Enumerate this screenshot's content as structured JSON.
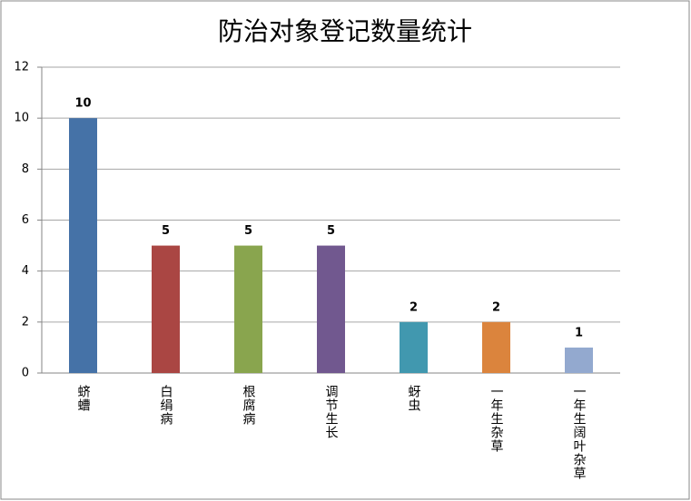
{
  "chart_data": {
    "type": "bar",
    "title": "防治对象登记数量统计",
    "categories": [
      "蛴螬",
      "白绢病",
      "根腐病",
      "调节生长",
      "蚜虫",
      "一年生杂草",
      "一年生阔叶杂草"
    ],
    "values": [
      10,
      5,
      5,
      5,
      2,
      2,
      1
    ],
    "colors": [
      "#4572a7",
      "#aa4643",
      "#89a54e",
      "#71588f",
      "#4198af",
      "#db843d",
      "#93a9cf"
    ],
    "ylim": [
      0,
      12
    ],
    "yticks": [
      0,
      2,
      4,
      6,
      8,
      10,
      12
    ],
    "grid": true,
    "data_labels": true
  }
}
